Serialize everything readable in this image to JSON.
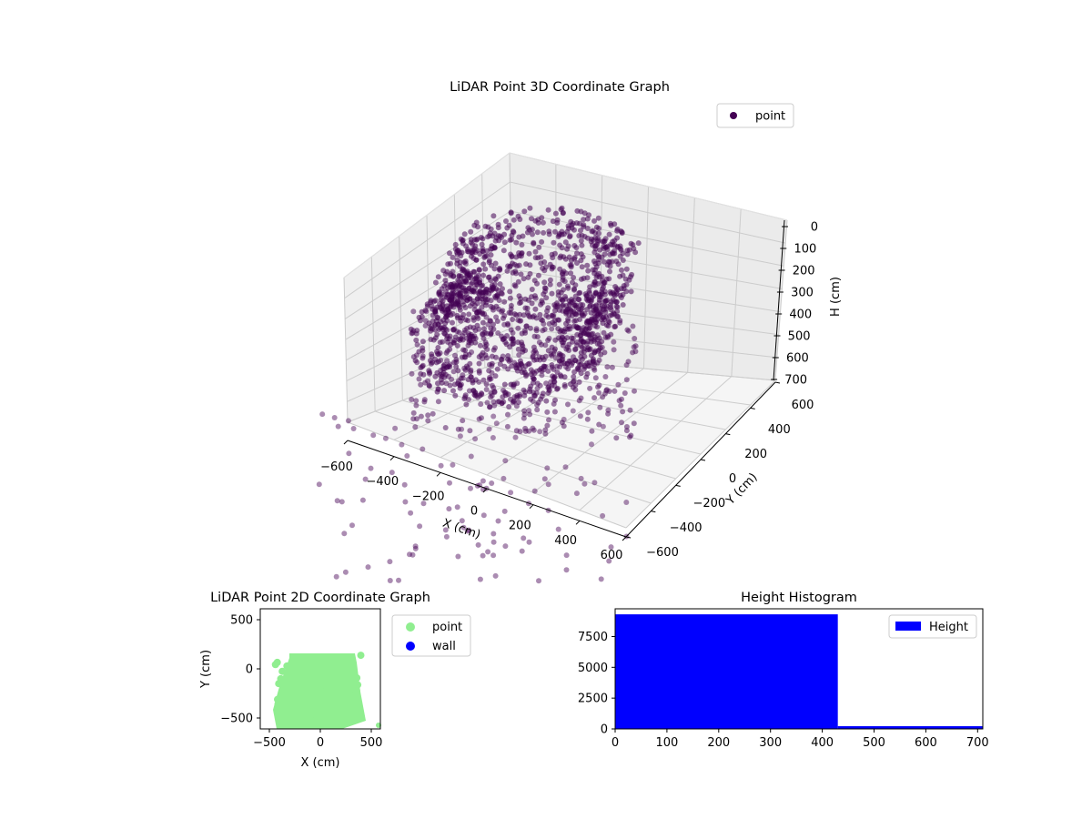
{
  "chart_data": [
    {
      "type": "scatter",
      "title": "LiDAR Point 3D Coordinate Graph",
      "xlabel": "X (cm)",
      "ylabel": "Y (cm)",
      "zlabel": "H (cm)",
      "xticks": [
        "−600",
        "−400",
        "−200",
        "0",
        "200",
        "400",
        "600"
      ],
      "yticks": [
        "−600",
        "−400",
        "−200",
        "0",
        "200",
        "400",
        "600"
      ],
      "zticks": [
        "0",
        "100",
        "200",
        "300",
        "400",
        "500",
        "600",
        "700"
      ],
      "xlim": [
        -600,
        600
      ],
      "ylim": [
        -600,
        600
      ],
      "zlim": [
        700,
        0
      ],
      "grid": true,
      "legend": {
        "placement": "top-right",
        "entries": [
          {
            "label": "point",
            "color": "#440154"
          }
        ]
      },
      "series": [
        {
          "name": "point",
          "color": "#440154",
          "description_points": "dense ring-shaped cloud of several thousand points centred near x=0,y=-200 with height 0 to 700 cm"
        }
      ]
    },
    {
      "type": "scatter",
      "title": "LiDAR Point 2D Coordinate Graph",
      "xlabel": "X (cm)",
      "ylabel": "Y (cm)",
      "xticks": [
        "−500",
        "0",
        "500"
      ],
      "yticks": [
        "500",
        "0",
        "−500"
      ],
      "xlim": [
        -600,
        600
      ],
      "ylim": [
        -600,
        600
      ],
      "legend": {
        "placement": "outside-right",
        "entries": [
          {
            "label": "point",
            "color": "#90ee90"
          },
          {
            "label": "wall",
            "color": "#0000ff"
          }
        ]
      },
      "series": [
        {
          "name": "point",
          "color": "#90ee90"
        },
        {
          "name": "wall",
          "color": "#0000ff"
        }
      ]
    },
    {
      "type": "bar",
      "title": "Height Histogram",
      "xticks": [
        "0",
        "100",
        "200",
        "300",
        "400",
        "500",
        "600",
        "700"
      ],
      "yticks": [
        "0",
        "2500",
        "5000",
        "7500"
      ],
      "xlim": [
        0,
        710
      ],
      "ylim": [
        0,
        9750
      ],
      "legend": {
        "placement": "top-right",
        "entries": [
          {
            "label": "Height",
            "color": "#0000ff"
          }
        ]
      },
      "series": [
        {
          "name": "Height",
          "color": "#0000ff",
          "bins": [
            {
              "x0": 0,
              "x1": 430,
              "count": 9300
            },
            {
              "x0": 430,
              "x1": 710,
              "count": 220
            }
          ]
        }
      ]
    }
  ]
}
